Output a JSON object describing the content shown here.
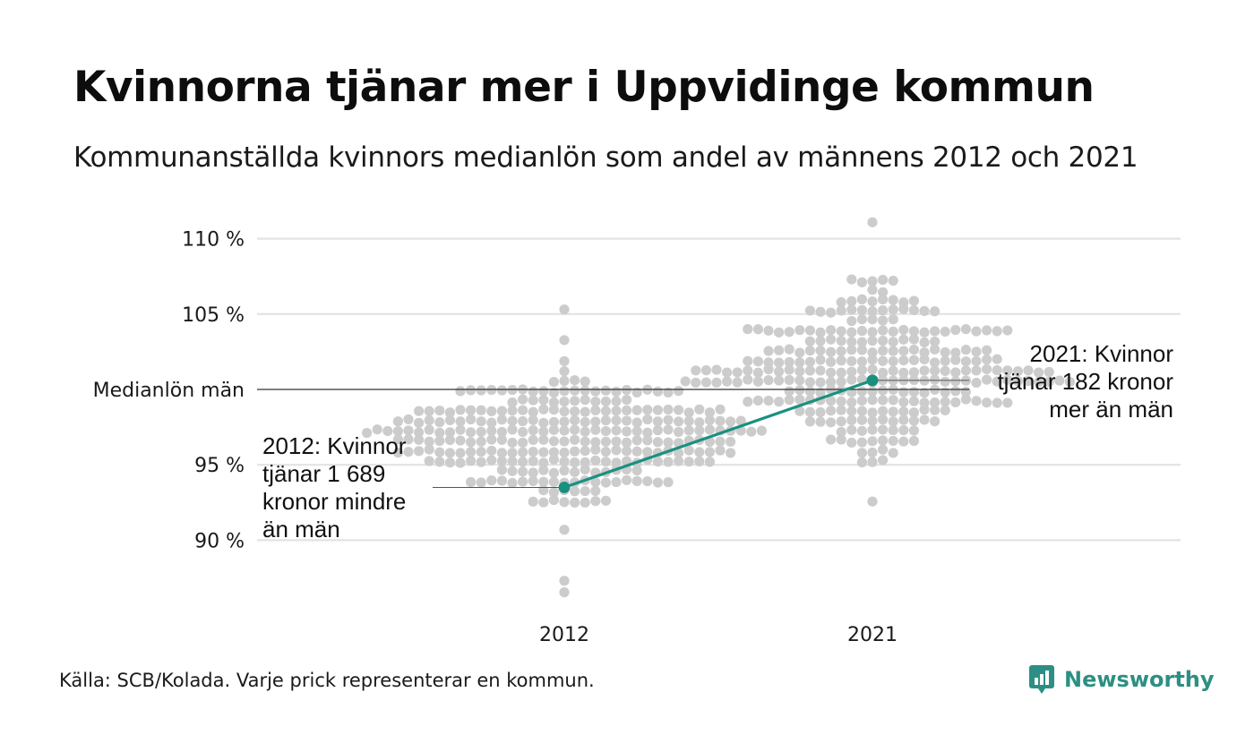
{
  "header": {
    "title": "Kvinnorna tjänar mer i Uppvidinge kommun",
    "subtitle": "Kommunanställda kvinnors medianlön som andel av männens 2012 och 2021"
  },
  "footer": {
    "source": "Källa: SCB/Kolada. Varje prick representerar en kommun.",
    "brand": "Newsworthy"
  },
  "colors": {
    "dots": "#cccccc",
    "highlight": "#1a9080",
    "grid": "#e3e3e3",
    "reference_line": "#333333",
    "brand": "#2d8f83"
  },
  "chart_data": {
    "type": "scatter",
    "style": "beeswarm",
    "categories": [
      "2012",
      "2021"
    ],
    "ylim": [
      86,
      111
    ],
    "y_ticks": [
      {
        "value": 110,
        "label": "110 %"
      },
      {
        "value": 105,
        "label": "105 %"
      },
      {
        "value": 100,
        "label": "Medianlön män"
      },
      {
        "value": 95,
        "label": "95 %"
      },
      {
        "value": 90,
        "label": "90 %"
      }
    ],
    "reference_value": 100,
    "highlight": {
      "series": "Uppvidinge",
      "points": [
        {
          "x": "2012",
          "y": 93.5
        },
        {
          "x": "2021",
          "y": 100.6
        }
      ]
    },
    "annotations": [
      {
        "x": "2012",
        "y": 93.5,
        "lines": [
          "2012: Kvinnor",
          "tjänar 1 689",
          "kronor mindre",
          "än män"
        ]
      },
      {
        "x": "2021",
        "y": 100.6,
        "lines": [
          "2021: Kvinnor",
          "tjänar 182 kronor",
          "mer än män"
        ]
      }
    ],
    "distributions": [
      {
        "x": "2012",
        "n": 290,
        "median": 96.8,
        "sd": 2.3,
        "min": 86.5,
        "max": 105.2
      },
      {
        "x": "2021",
        "n": 290,
        "median": 101.2,
        "sd": 2.5,
        "min": 92.6,
        "max": 111.4
      }
    ]
  }
}
